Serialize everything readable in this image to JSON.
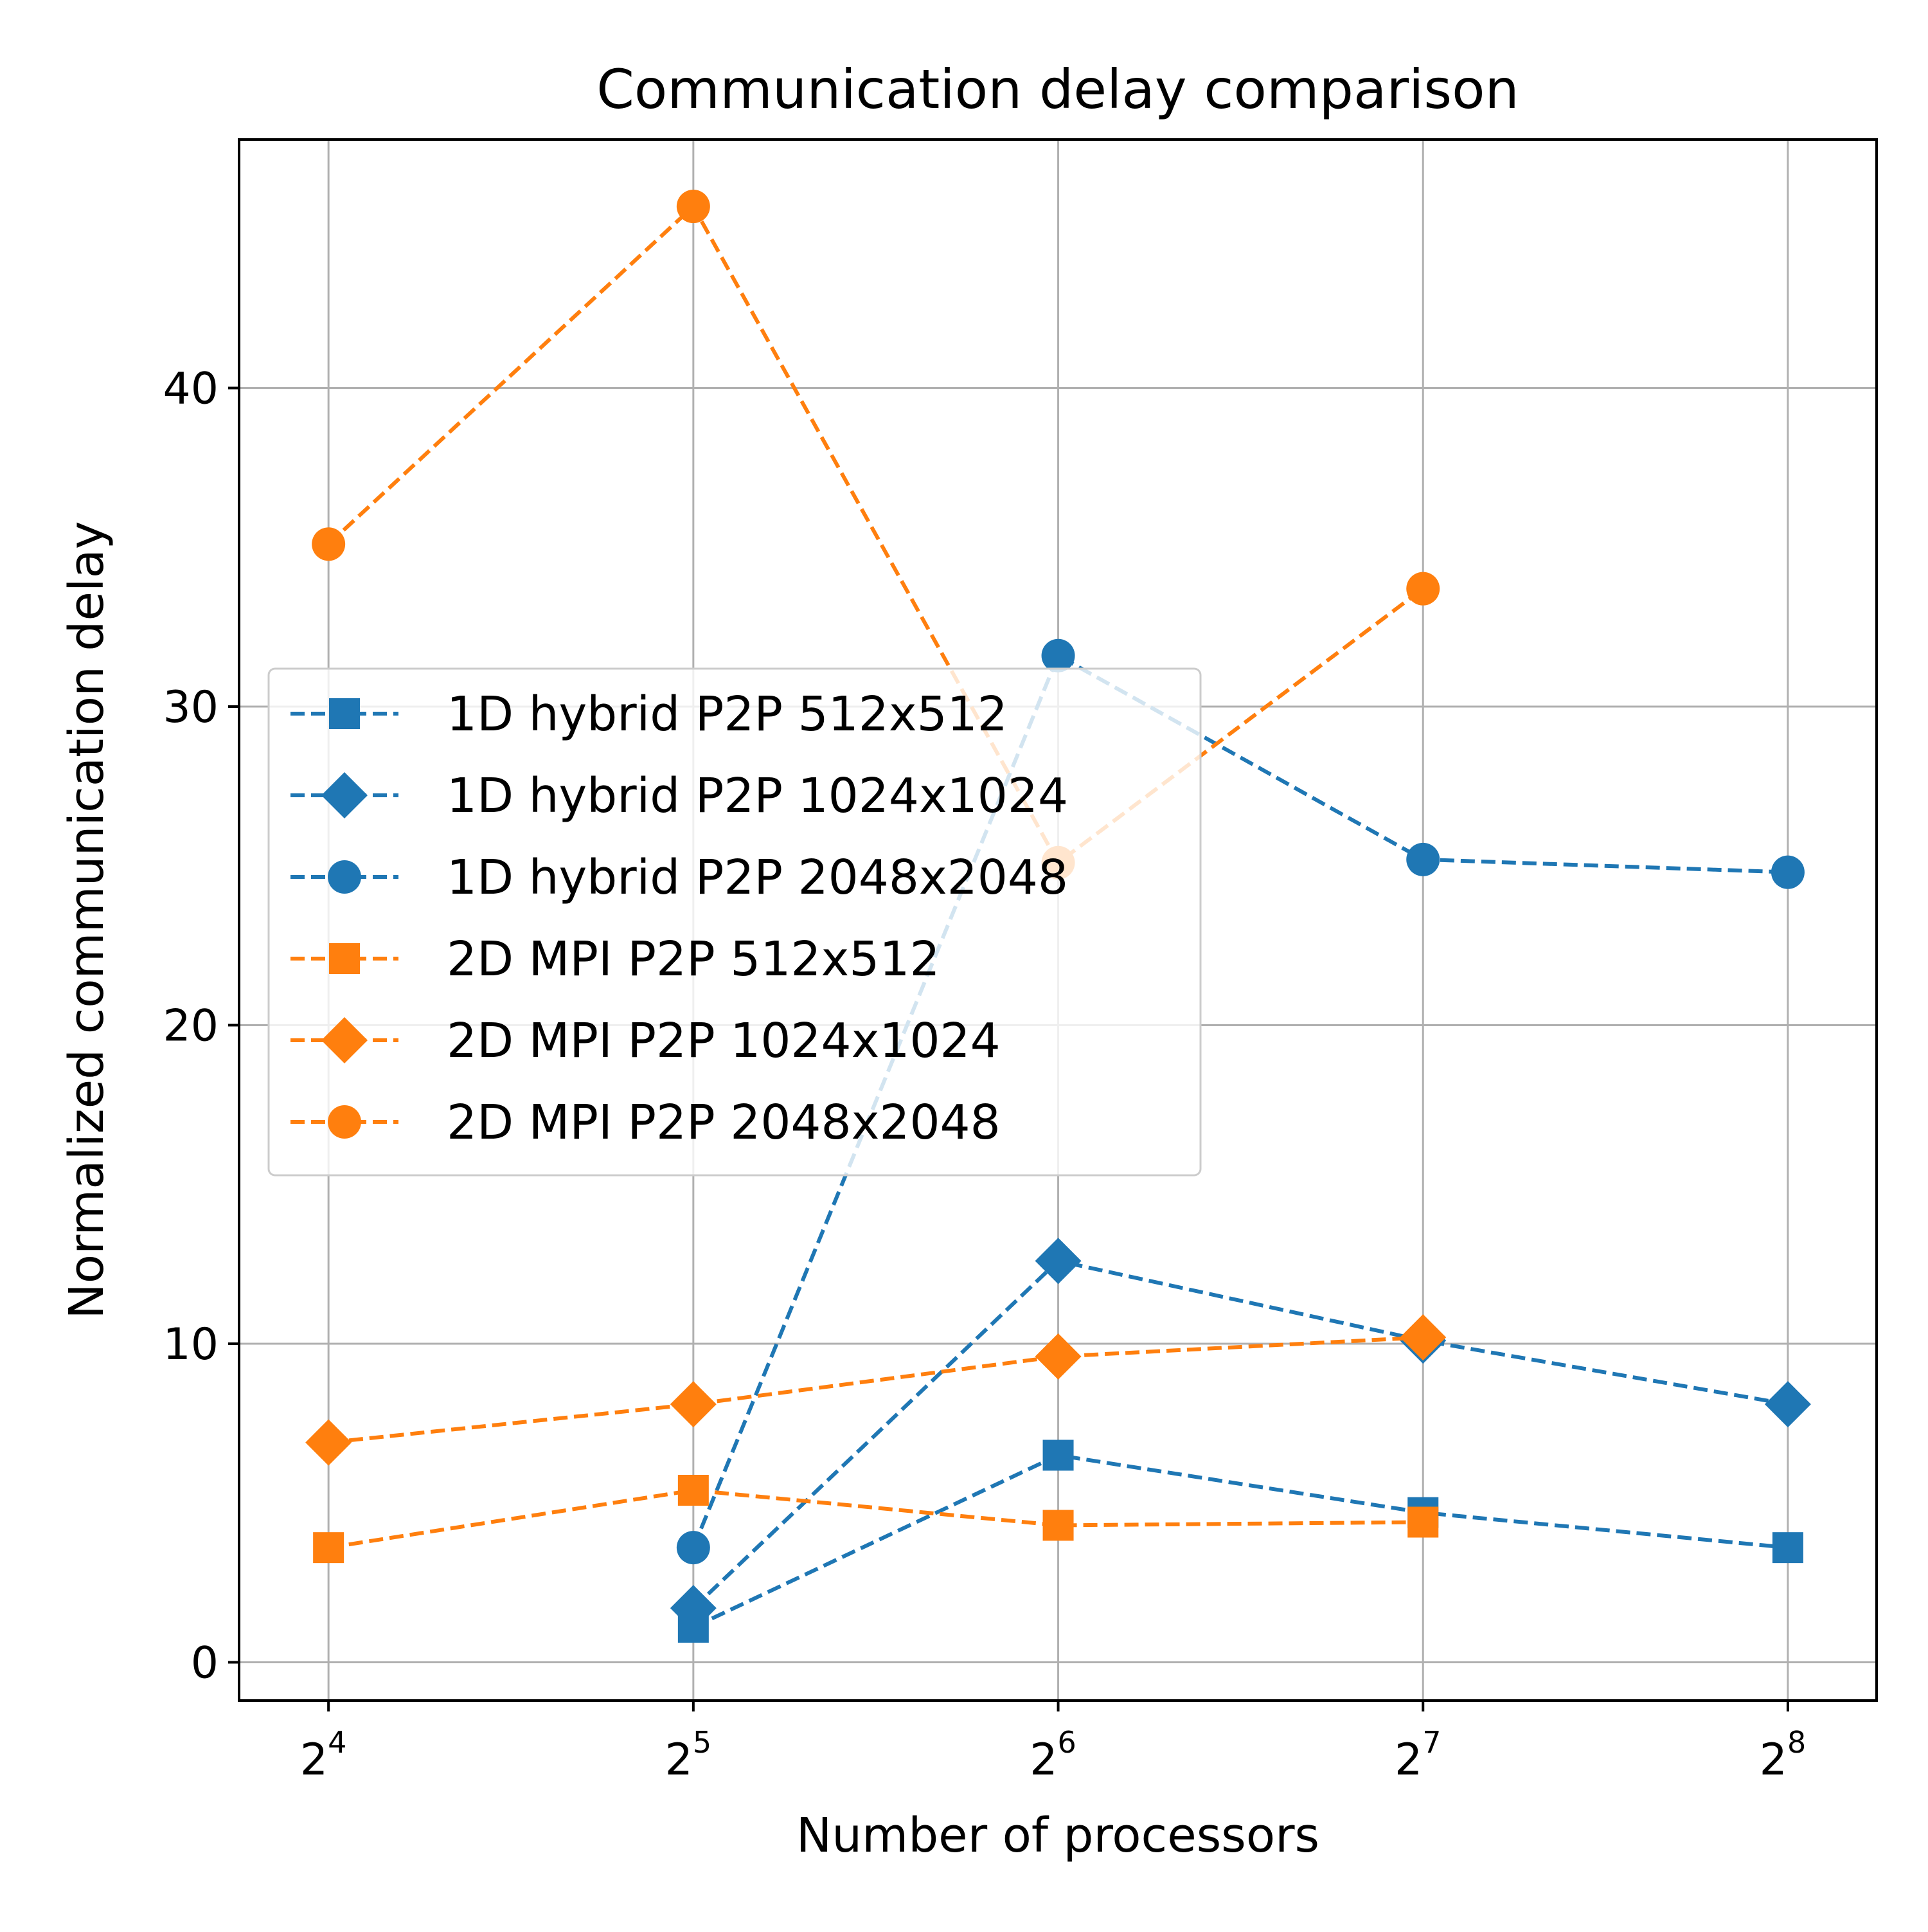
{
  "chart_data": {
    "type": "line",
    "title": "Communication delay comparison",
    "xlabel": "Number of processors",
    "ylabel": "Normalized communication delay",
    "x_scale": "log2",
    "x": [
      16,
      32,
      64,
      128,
      256
    ],
    "x_tick_labels": [
      {
        "base": "2",
        "exp": "4"
      },
      {
        "base": "2",
        "exp": "5"
      },
      {
        "base": "2",
        "exp": "6"
      },
      {
        "base": "2",
        "exp": "7"
      },
      {
        "base": "2",
        "exp": "8"
      }
    ],
    "xlim": [
      13.5,
      303
    ],
    "y_ticks": [
      "0",
      "10",
      "20",
      "30",
      "40"
    ],
    "ylim": [
      -1.2,
      47.8
    ],
    "grid": true,
    "legend_position": "center-left",
    "colors": {
      "blue": "#1f77b4",
      "orange": "#ff7f0e"
    },
    "series": [
      {
        "name": "1D hybrid P2P 512x512",
        "color": "#1f77b4",
        "marker": "square",
        "x": [
          32,
          64,
          128,
          256
        ],
        "values": [
          1.1,
          6.5,
          4.7,
          3.6
        ]
      },
      {
        "name": "1D hybrid P2P 1024x1024",
        "color": "#1f77b4",
        "marker": "diamond",
        "x": [
          32,
          64,
          128,
          256
        ],
        "values": [
          1.7,
          12.6,
          10.1,
          8.1
        ]
      },
      {
        "name": "1D hybrid P2P 2048x2048",
        "color": "#1f77b4",
        "marker": "circle",
        "x": [
          32,
          64,
          128,
          256
        ],
        "values": [
          3.6,
          31.6,
          25.2,
          24.8
        ]
      },
      {
        "name": "2D MPI P2P 512x512",
        "color": "#ff7f0e",
        "marker": "square",
        "x": [
          16,
          32,
          64,
          128
        ],
        "values": [
          3.6,
          5.4,
          4.3,
          4.4
        ]
      },
      {
        "name": "2D MPI P2P 1024x1024",
        "color": "#ff7f0e",
        "marker": "diamond",
        "x": [
          16,
          32,
          64,
          128
        ],
        "values": [
          6.9,
          8.1,
          9.6,
          10.2
        ]
      },
      {
        "name": "2D MPI P2P 2048x2048",
        "color": "#ff7f0e",
        "marker": "circle",
        "x": [
          16,
          32,
          64,
          128
        ],
        "values": [
          35.1,
          45.7,
          25.1,
          33.7
        ]
      }
    ]
  }
}
